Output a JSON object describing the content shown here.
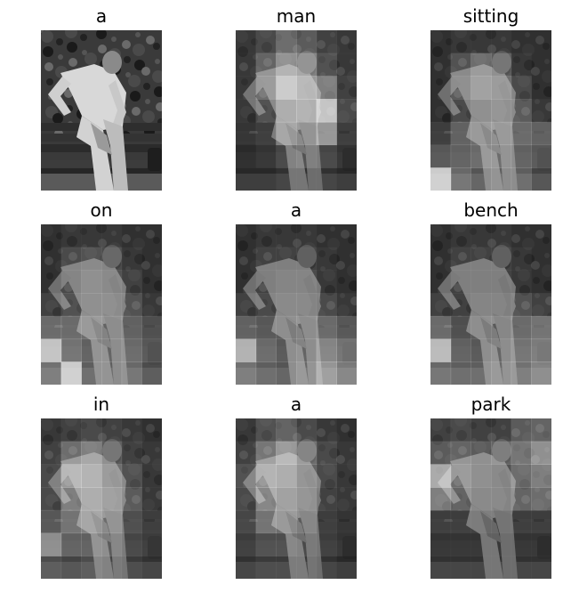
{
  "panels": [
    {
      "word": "a",
      "heat": [
        [
          0,
          0,
          0,
          0,
          0,
          0
        ],
        [
          0,
          0,
          0,
          0,
          0,
          0
        ],
        [
          0,
          0,
          0,
          0,
          0,
          0
        ],
        [
          0,
          0,
          0,
          0,
          0,
          0
        ],
        [
          0,
          0,
          0,
          0,
          0,
          0
        ],
        [
          0,
          0,
          0,
          0,
          0,
          0
        ],
        [
          0,
          0,
          0,
          0,
          0,
          0
        ]
      ],
      "plain": true
    },
    {
      "word": "man",
      "heat": [
        [
          0.05,
          0.15,
          0.35,
          0.25,
          0.1,
          0.05
        ],
        [
          0.05,
          0.3,
          0.55,
          0.45,
          0.2,
          0.05
        ],
        [
          0.05,
          0.35,
          0.75,
          0.6,
          0.45,
          0.1
        ],
        [
          0.05,
          0.2,
          0.5,
          0.55,
          0.85,
          0.15
        ],
        [
          0.05,
          0.1,
          0.45,
          0.35,
          0.6,
          0.1
        ],
        [
          0,
          0.05,
          0.15,
          0.2,
          0.15,
          0.05
        ],
        [
          0,
          0,
          0.05,
          0.05,
          0.05,
          0
        ]
      ]
    },
    {
      "word": "sitting",
      "heat": [
        [
          0,
          0.05,
          0.05,
          0.05,
          0,
          0
        ],
        [
          0,
          0.2,
          0.35,
          0.25,
          0.05,
          0
        ],
        [
          0,
          0.25,
          0.4,
          0.35,
          0.15,
          0
        ],
        [
          0,
          0.15,
          0.25,
          0.3,
          0.25,
          0.05
        ],
        [
          0.1,
          0.3,
          0.35,
          0.4,
          0.35,
          0.3
        ],
        [
          0.25,
          0.3,
          0.35,
          0.35,
          0.3,
          0.25
        ],
        [
          0.9,
          0.35,
          0.25,
          0.3,
          0.3,
          0.15
        ]
      ]
    },
    {
      "word": "on",
      "heat": [
        [
          0,
          0.05,
          0.05,
          0.05,
          0,
          0
        ],
        [
          0,
          0.15,
          0.2,
          0.15,
          0.05,
          0
        ],
        [
          0,
          0.15,
          0.25,
          0.2,
          0.1,
          0
        ],
        [
          0.1,
          0.2,
          0.25,
          0.25,
          0.2,
          0.05
        ],
        [
          0.35,
          0.35,
          0.35,
          0.3,
          0.3,
          0.2
        ],
        [
          0.85,
          0.4,
          0.3,
          0.3,
          0.35,
          0.25
        ],
        [
          0.4,
          0.9,
          0.3,
          0.3,
          0.35,
          0.2
        ]
      ]
    },
    {
      "word": "a",
      "heat": [
        [
          0,
          0.05,
          0.05,
          0.05,
          0,
          0
        ],
        [
          0,
          0.1,
          0.1,
          0.1,
          0.05,
          0
        ],
        [
          0,
          0.1,
          0.15,
          0.15,
          0.05,
          0
        ],
        [
          0.1,
          0.15,
          0.2,
          0.2,
          0.15,
          0.05
        ],
        [
          0.3,
          0.25,
          0.25,
          0.3,
          0.35,
          0.25
        ],
        [
          0.75,
          0.35,
          0.25,
          0.3,
          0.5,
          0.4
        ],
        [
          0.4,
          0.3,
          0.25,
          0.35,
          0.6,
          0.45
        ]
      ]
    },
    {
      "word": "bench",
      "heat": [
        [
          0,
          0.05,
          0.05,
          0.05,
          0,
          0
        ],
        [
          0,
          0.1,
          0.1,
          0.1,
          0.05,
          0
        ],
        [
          0,
          0.1,
          0.1,
          0.1,
          0.05,
          0
        ],
        [
          0.1,
          0.1,
          0.15,
          0.15,
          0.2,
          0.1
        ],
        [
          0.35,
          0.2,
          0.25,
          0.25,
          0.35,
          0.4
        ],
        [
          0.8,
          0.3,
          0.25,
          0.3,
          0.4,
          0.45
        ],
        [
          0.35,
          0.3,
          0.3,
          0.35,
          0.4,
          0.5
        ]
      ]
    },
    {
      "word": "in",
      "heat": [
        [
          0.05,
          0.1,
          0.15,
          0.1,
          0.05,
          0
        ],
        [
          0.1,
          0.35,
          0.45,
          0.25,
          0.1,
          0.05
        ],
        [
          0.15,
          0.6,
          0.55,
          0.35,
          0.2,
          0.05
        ],
        [
          0.15,
          0.45,
          0.5,
          0.4,
          0.25,
          0.05
        ],
        [
          0.25,
          0.4,
          0.45,
          0.35,
          0.2,
          0.1
        ],
        [
          0.55,
          0.3,
          0.3,
          0.25,
          0.15,
          0.1
        ],
        [
          0.2,
          0.15,
          0.2,
          0.15,
          0.1,
          0.05
        ]
      ]
    },
    {
      "word": "a",
      "heat": [
        [
          0.05,
          0.2,
          0.3,
          0.15,
          0.05,
          0
        ],
        [
          0.1,
          0.4,
          0.6,
          0.35,
          0.15,
          0.05
        ],
        [
          0.2,
          0.55,
          0.5,
          0.3,
          0.15,
          0.05
        ],
        [
          0.15,
          0.5,
          0.4,
          0.3,
          0.1,
          0.05
        ],
        [
          0.15,
          0.4,
          0.35,
          0.25,
          0.1,
          0.05
        ],
        [
          0.1,
          0.2,
          0.2,
          0.15,
          0.1,
          0.05
        ],
        [
          0.05,
          0.1,
          0.1,
          0.1,
          0.05,
          0
        ]
      ]
    },
    {
      "word": "park",
      "heat": [
        [
          0.1,
          0.15,
          0.1,
          0.1,
          0.25,
          0.3
        ],
        [
          0.25,
          0.3,
          0.25,
          0.3,
          0.4,
          0.55
        ],
        [
          0.7,
          0.35,
          0.25,
          0.2,
          0.35,
          0.45
        ],
        [
          0.45,
          0.3,
          0.2,
          0.2,
          0.3,
          0.35
        ],
        [
          0.1,
          0.1,
          0.1,
          0.1,
          0.1,
          0.1
        ],
        [
          0.05,
          0.05,
          0.05,
          0.05,
          0.05,
          0.05
        ],
        [
          0.05,
          0.05,
          0.05,
          0.05,
          0.05,
          0.05
        ]
      ]
    }
  ]
}
